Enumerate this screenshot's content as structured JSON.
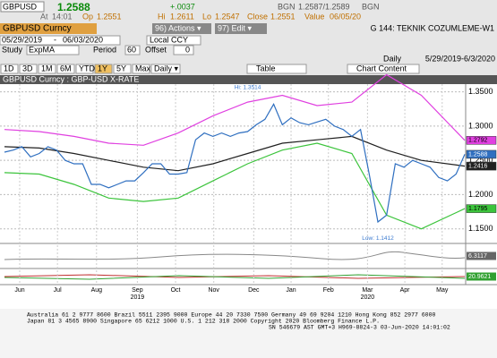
{
  "header": {
    "ticker": "GBPUSD",
    "last": "1.2588",
    "change": "+.0037",
    "bid_ask_label": "BGN",
    "bid_ask": "1.2587/1.2589",
    "bid_ask_label2": "BGN",
    "at_label": "At",
    "time": "14:01",
    "open_label": "Op",
    "open": "1.2551",
    "high_label": "Hi",
    "high": "1.2611",
    "low_label": "Lo",
    "low": "1.2547",
    "close_label": "Close",
    "close": "1.2551",
    "value_label": "Value",
    "value_date": "06/05/20"
  },
  "toolbar": {
    "security": "GBPUSD Curncy",
    "actions": "96) Actions ▾",
    "edit": "97) Edit ▾",
    "page": "G 144: TEKNIK COZUMLEME-W1",
    "start": "05/29/2019",
    "dash": "-",
    "end": "06/03/2020",
    "currency": "Local CCY",
    "study_label": "Study",
    "study": "ExpMA",
    "period_label": "Period",
    "period": "60",
    "offset_label": "Offset",
    "offset": "0",
    "frequency": "Daily",
    "range": "5/29/2019-6/3/2020",
    "buttons": [
      "1D",
      "3D",
      "1M",
      "6M",
      "YTD",
      "1Y",
      "5Y",
      "Max",
      "Daily ▾"
    ],
    "table": "Table",
    "chart_content": "Chart Content"
  },
  "chart_data": {
    "type": "line",
    "title": "GBPUSD Curncy : GBP-USD X-RATE",
    "xlim": [
      0,
      53
    ],
    "ylim": [
      1.13,
      1.36
    ],
    "grid": true,
    "yticks": [
      {
        "value": 1.15,
        "label": "1.1500"
      },
      {
        "value": 1.2,
        "label": "1.2000"
      },
      {
        "value": 1.25,
        "label": "1.2500"
      },
      {
        "value": 1.3,
        "label": "1.3000"
      },
      {
        "value": 1.35,
        "label": "1.3500"
      }
    ],
    "xticks": [
      {
        "value": 1.75,
        "label": "Jun"
      },
      {
        "value": 6.1,
        "label": "Jul"
      },
      {
        "value": 10.6,
        "label": "Aug"
      },
      {
        "value": 15.3,
        "label": "Sep"
      },
      {
        "value": 19.7,
        "label": "Oct"
      },
      {
        "value": 24.1,
        "label": "Nov"
      },
      {
        "value": 28.7,
        "label": "Dec"
      },
      {
        "value": 33,
        "label": "Jan"
      },
      {
        "value": 37.3,
        "label": "Feb"
      },
      {
        "value": 41.8,
        "label": "Mar"
      },
      {
        "value": 46.1,
        "label": "Apr"
      },
      {
        "value": 50.4,
        "label": "May"
      }
    ],
    "years": [
      {
        "value": 15.3,
        "label": "2019"
      },
      {
        "value": 41.8,
        "label": "2020"
      }
    ],
    "series": [
      {
        "color": "#e040e0",
        "x": [
          0,
          4,
          8,
          12,
          16,
          20,
          24,
          28,
          32,
          36,
          40,
          44,
          48,
          53
        ],
        "values": [
          1.295,
          1.292,
          1.285,
          1.275,
          1.272,
          1.29,
          1.315,
          1.335,
          1.345,
          1.33,
          1.335,
          1.375,
          1.345,
          1.2792
        ]
      },
      {
        "color": "#3cc43c",
        "x": [
          0,
          4,
          8,
          12,
          16,
          20,
          24,
          28,
          32,
          36,
          40,
          44,
          48,
          53
        ],
        "values": [
          1.232,
          1.23,
          1.215,
          1.195,
          1.19,
          1.195,
          1.22,
          1.245,
          1.265,
          1.275,
          1.26,
          1.17,
          1.15,
          1.1795
        ]
      },
      {
        "color": "#202020",
        "x": [
          0,
          4,
          8,
          12,
          16,
          20,
          24,
          28,
          32,
          36,
          40,
          44,
          48,
          53
        ],
        "values": [
          1.27,
          1.268,
          1.26,
          1.25,
          1.24,
          1.235,
          1.245,
          1.26,
          1.275,
          1.28,
          1.285,
          1.265,
          1.25,
          1.2416
        ]
      },
      {
        "color": "#2f6fc0",
        "x": [
          0,
          1,
          2,
          3,
          4,
          5,
          6,
          7,
          8,
          9,
          10,
          11,
          12,
          13,
          14,
          15,
          16,
          17,
          18,
          19,
          20,
          21,
          22,
          23,
          24,
          25,
          26,
          27,
          28,
          29,
          30,
          31,
          32,
          33,
          34,
          35,
          36,
          37,
          38,
          39,
          40,
          41,
          42,
          43,
          44,
          45,
          46,
          47,
          48,
          49,
          50,
          51,
          52,
          53
        ],
        "values": [
          1.262,
          1.265,
          1.27,
          1.255,
          1.26,
          1.27,
          1.265,
          1.25,
          1.245,
          1.245,
          1.215,
          1.215,
          1.21,
          1.215,
          1.22,
          1.22,
          1.232,
          1.245,
          1.245,
          1.23,
          1.23,
          1.232,
          1.28,
          1.29,
          1.285,
          1.29,
          1.285,
          1.29,
          1.292,
          1.302,
          1.31,
          1.332,
          1.302,
          1.312,
          1.305,
          1.302,
          1.306,
          1.31,
          1.3,
          1.295,
          1.285,
          1.295,
          1.23,
          1.16,
          1.17,
          1.245,
          1.24,
          1.25,
          1.245,
          1.24,
          1.225,
          1.22,
          1.23,
          1.2588
        ]
      }
    ],
    "annotations": [
      {
        "text": "Hi: 1.3514",
        "x": 28,
        "y": 1.3514
      },
      {
        "text": "Low: 1.1412",
        "x": 43,
        "y": 1.1412
      }
    ],
    "panels": [
      6.3117,
      20.9621
    ]
  },
  "footer": {
    "lines": [
      "Australia 61 2 9777 8600 Brazil 5511 2395 9000 Europe 44 20 7330 7500 Germany 49 69 9204 1210 Hong Kong 852 2977 6000",
      "Japan 81 3 4565 8900 Singapore 65 6212 1000 U.S. 1 212 318 2000 Copyright 2020 Bloomberg Finance L.P.",
      "SN 546679 AST GMT+3 H969-8824-3 03-Jun-2020 14:01:02"
    ]
  }
}
